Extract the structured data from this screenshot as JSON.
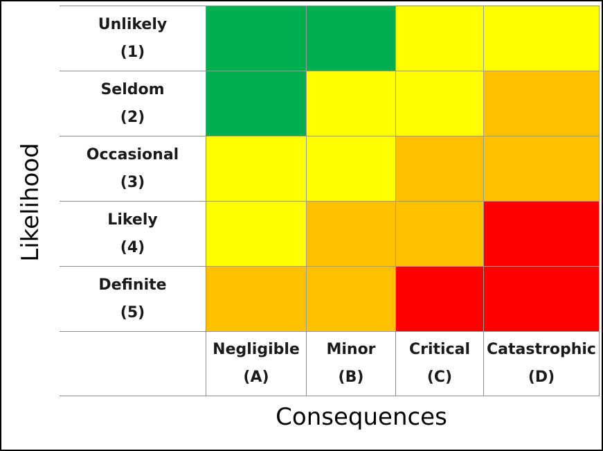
{
  "y_axis_title": "Likelihood",
  "x_axis_title": "Consequences",
  "likelihood": [
    {
      "name": "Unlikely",
      "code": "(1)"
    },
    {
      "name": "Seldom",
      "code": "(2)"
    },
    {
      "name": "Occasional",
      "code": "(3)"
    },
    {
      "name": "Likely",
      "code": "(4)"
    },
    {
      "name": "Definite",
      "code": "(5)"
    }
  ],
  "consequences": [
    {
      "name": "Negligible",
      "code": "(A)"
    },
    {
      "name": "Minor",
      "code": "(B)"
    },
    {
      "name": "Critical",
      "code": "(C)"
    },
    {
      "name": "Catastrophic",
      "code": "(D)"
    }
  ],
  "colors": {
    "green": "#00b050",
    "yellow": "#ffff00",
    "orange": "#ffc000",
    "red": "#ff0000"
  },
  "risk_levels": [
    [
      "green",
      "green",
      "yellow",
      "yellow"
    ],
    [
      "green",
      "yellow",
      "yellow",
      "orange"
    ],
    [
      "yellow",
      "yellow",
      "orange",
      "orange"
    ],
    [
      "yellow",
      "orange",
      "orange",
      "red"
    ],
    [
      "orange",
      "orange",
      "red",
      "red"
    ]
  ]
}
